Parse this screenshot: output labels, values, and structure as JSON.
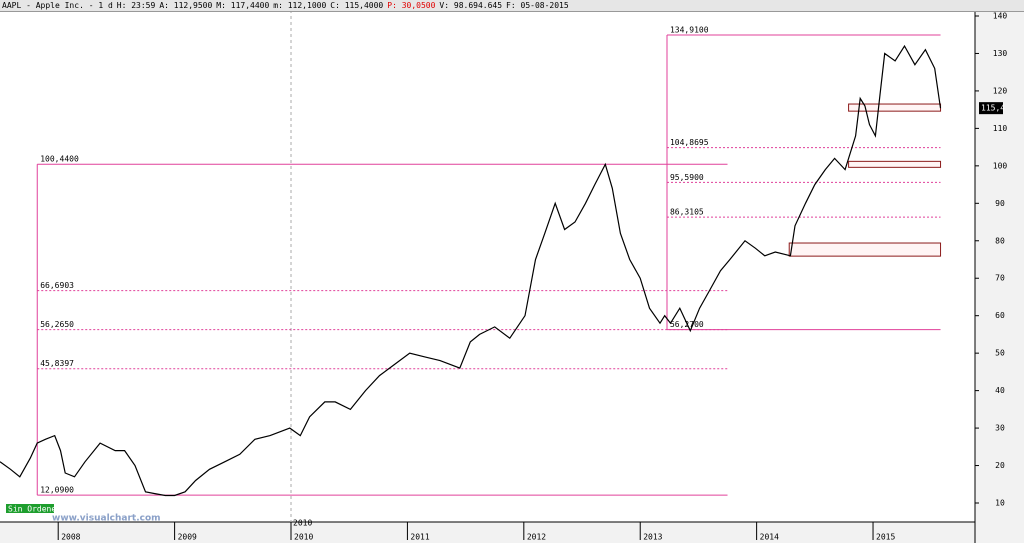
{
  "chart_data": {
    "type": "line",
    "header": {
      "parts": [
        "AAPL - Apple Inc. - 1 d",
        "H: 23:59",
        "A: 112,9500",
        "M: 117,4400",
        "m: 112,1000",
        "C: 115,4000",
        "P: 30,0500",
        "V: 98.694.645",
        "F: 05-08-2015"
      ],
      "highlight": 6
    },
    "color": "#000000",
    "x": [
      2007.5,
      2007.59,
      2007.67,
      2007.76,
      2007.82,
      2007.89,
      2007.97,
      2008.02,
      2008.06,
      2008.14,
      2008.23,
      2008.36,
      2008.49,
      2008.57,
      2008.66,
      2008.75,
      2008.83,
      2008.92,
      2009.0,
      2009.09,
      2009.18,
      2009.3,
      2009.43,
      2009.56,
      2009.69,
      2009.82,
      2009.99,
      2010.08,
      2010.16,
      2010.29,
      2010.38,
      2010.51,
      2010.64,
      2010.76,
      2010.89,
      2011.02,
      2011.15,
      2011.28,
      2011.45,
      2011.54,
      2011.62,
      2011.75,
      2011.88,
      2012.01,
      2012.1,
      2012.18,
      2012.27,
      2012.35,
      2012.44,
      2012.53,
      2012.61,
      2012.7,
      2012.76,
      2012.83,
      2012.91,
      2013.0,
      2013.08,
      2013.17,
      2013.21,
      2013.26,
      2013.34,
      2013.43,
      2013.51,
      2013.6,
      2013.69,
      2013.77,
      2013.9,
      2013.99,
      2014.07,
      2014.16,
      2014.29,
      2014.33,
      2014.42,
      2014.5,
      2014.59,
      2014.67,
      2014.76,
      2014.85,
      2014.89,
      2014.93,
      2014.97,
      2015.02,
      2015.06,
      2015.1,
      2015.19,
      2015.27,
      2015.36,
      2015.45,
      2015.53,
      2015.58
    ],
    "values": [
      21,
      19,
      17,
      22,
      26,
      27,
      28,
      24,
      18,
      17,
      21,
      26,
      24,
      24,
      20,
      13,
      12.5,
      12,
      12,
      13,
      16,
      19,
      21,
      23,
      27,
      28,
      30,
      28,
      33,
      37,
      37,
      35,
      40,
      44,
      47,
      50,
      49,
      48,
      46,
      53,
      55,
      57,
      54,
      60,
      75,
      82,
      90,
      83,
      85,
      90,
      95,
      100.4,
      94,
      82,
      75,
      70,
      62,
      58,
      60,
      58,
      62,
      56,
      62,
      67,
      72,
      75,
      80,
      78,
      76,
      77,
      76,
      84,
      90,
      95,
      99,
      102,
      99,
      108,
      118,
      116,
      111,
      108,
      119,
      130,
      128,
      132,
      127,
      131,
      126,
      115.4
    ],
    "xlim": [
      2007.5,
      2015.876
    ],
    "xticks": [
      2008,
      2009,
      2010,
      2011,
      2012,
      2013,
      2014,
      2015
    ],
    "divider": 2010,
    "ylim": [
      4.93,
      141.6
    ],
    "yticks": [
      10,
      20,
      30,
      40,
      50,
      60,
      70,
      80,
      90,
      100,
      110,
      120,
      130,
      140
    ],
    "last": {
      "value": 115.4,
      "label": "115,4"
    },
    "fibs": [
      {
        "x": [
          2007.82,
          2013.75
        ],
        "levels": [
          {
            "value": 100.44,
            "label": "100,4400"
          },
          {
            "value": 66.6903,
            "label": "66,6903"
          },
          {
            "value": 56.265,
            "label": "56,2650"
          },
          {
            "value": 45.8397,
            "label": "45,8397"
          },
          {
            "value": 12.09,
            "label": "12,0900"
          }
        ],
        "styles": [
          "solid",
          "dashed",
          "dashed",
          "dashed",
          "solid"
        ]
      },
      {
        "x": [
          2013.23,
          2015.58
        ],
        "levels": [
          {
            "value": 134.91,
            "label": "134,9100"
          },
          {
            "value": 104.8695,
            "label": "104,8695"
          },
          {
            "value": 95.59,
            "label": "95,5900"
          },
          {
            "value": 86.3105,
            "label": "86,3105"
          },
          {
            "value": 56.27,
            "label": "56,2700"
          }
        ],
        "styles": [
          "solid",
          "dashed",
          "dashed",
          "dashed",
          "solid"
        ]
      }
    ],
    "zones": [
      {
        "x": [
          2014.79,
          2015.58
        ],
        "y": [
          114.6,
          116.5
        ]
      },
      {
        "x": [
          2014.79,
          2015.58
        ],
        "y": [
          99.6,
          101.2
        ]
      },
      {
        "x": [
          2014.28,
          2015.58
        ],
        "y": [
          75.9,
          79.4
        ]
      }
    ],
    "badge": "Sin Ordenes",
    "watermark": "www.visualchart.com"
  }
}
